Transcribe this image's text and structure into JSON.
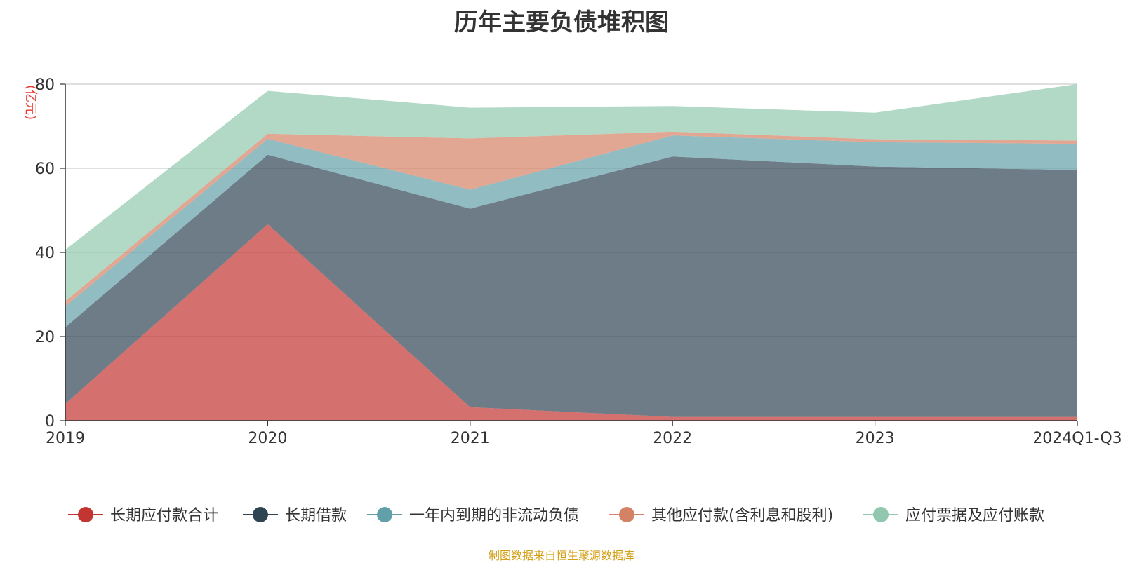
{
  "chart_data": {
    "type": "area",
    "title": "历年主要负债堆积图",
    "ylabel": "(亿元)",
    "categories": [
      "2019",
      "2020",
      "2021",
      "2022",
      "2023",
      "2024Q1-Q3"
    ],
    "ylim": [
      0,
      80
    ],
    "yticks": [
      0,
      20,
      40,
      60,
      80
    ],
    "stacked": true,
    "grid": true,
    "legend_position": "bottom",
    "series": [
      {
        "name": "长期应付款合计",
        "color": "#c23531",
        "values": [
          4.0,
          46.7,
          3.2,
          0.9,
          0.9,
          0.9
        ]
      },
      {
        "name": "长期借款",
        "color": "#2f4554",
        "values": [
          18.2,
          16.5,
          47.2,
          61.9,
          59.5,
          58.7
        ]
      },
      {
        "name": "一年内到期的非流动负债",
        "color": "#61a0a8",
        "values": [
          5.0,
          3.8,
          4.5,
          5.0,
          5.8,
          6.2
        ]
      },
      {
        "name": "其他应付款(含利息和股利)",
        "color": "#d48265",
        "values": [
          1.2,
          1.2,
          12.2,
          0.9,
          0.7,
          0.8
        ]
      },
      {
        "name": "应付票据及应付账款",
        "color": "#91c7ae",
        "values": [
          12.2,
          10.2,
          7.3,
          6.1,
          6.3,
          13.4
        ]
      }
    ]
  },
  "footer": {
    "source": "制图数据来自恒生聚源数据库"
  }
}
